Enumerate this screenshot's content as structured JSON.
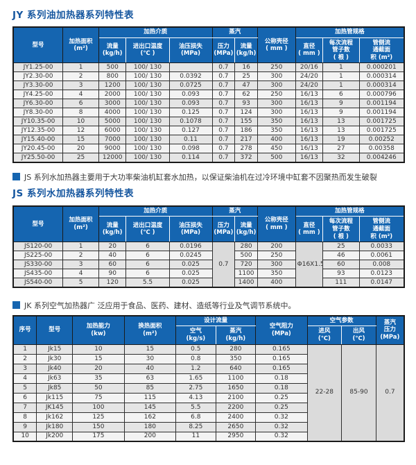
{
  "colors": {
    "header_blue": "#1565b0",
    "title_blue": "#15569f",
    "merged_cell_gray": "#dbdbdb"
  },
  "sections": {
    "jy": {
      "title": "JY 系列油加热器系列特性表",
      "table": {
        "columns": [
          {
            "label": "型号"
          },
          {
            "label": "加热面积\n(m²)"
          },
          {
            "group": "加热介质",
            "children": [
              "流量\n(kg/h)",
              "进出口温度\n(℃ )",
              "油压损失\n(MPa)"
            ]
          },
          {
            "group": "蒸汽",
            "children": [
              "压力\n(MPa)",
              "流量\n(kg/h)"
            ]
          },
          {
            "label": "公称壳径\n( mm )"
          },
          {
            "group": "加热管规格",
            "children": [
              "直径\n( mm )",
              "每次流程\n管子数\n( 根 )",
              "管侧流\n通截面\n积 (m²)"
            ]
          }
        ],
        "rows": [
          [
            "JY1.25-00",
            "1",
            "500",
            "100/ 130",
            "",
            "0.7",
            "16",
            "250",
            "20/16",
            "1",
            "0.000201"
          ],
          [
            "JY2.30-00",
            "2",
            "800",
            "100/ 130",
            "0.0392",
            "0.7",
            "25",
            "300",
            "24/20",
            "1",
            "0.000314"
          ],
          [
            "JY3.30-00",
            "3",
            "1200",
            "100/ 130",
            "0.0725",
            "0.7",
            "47",
            "300",
            "24/20",
            "1",
            "0.000314"
          ],
          [
            "JY4.25-00",
            "4",
            "2000",
            "100/ 130",
            "0.093",
            "0.7",
            "62",
            "250",
            "16/13",
            "6",
            "0.000796"
          ],
          [
            "JY6.30-00",
            "6",
            "3000",
            "100/ 130",
            "0.093",
            "0.7",
            "93",
            "300",
            "16/13",
            "9",
            "0.001194"
          ],
          [
            "JY8.30-00",
            "8",
            "4000",
            "100/ 130",
            "0.125",
            "0.7",
            "124",
            "300",
            "16/13",
            "9",
            "0.001194"
          ],
          [
            "JY10.35-00",
            "10",
            "5000",
            "100/ 130",
            "0.1078",
            "0.7",
            "155",
            "350",
            "16/13",
            "13",
            "0.001725"
          ],
          [
            "JY12.35-00",
            "12",
            "6000",
            "100/ 130",
            "0.127",
            "0.7",
            "186",
            "350",
            "16/13",
            "13",
            "0.001725"
          ],
          [
            "JY15.40-00",
            "15",
            "7000",
            "100/ 130",
            "0.11",
            "0.7",
            "217",
            "400",
            "16/13",
            "19",
            "0.00252"
          ],
          [
            "JY20.45-00",
            "20",
            "9000",
            "100/ 130",
            "0.098",
            "0.7",
            "278",
            "450",
            "16/13",
            "27",
            "0.00358"
          ],
          [
            "JY25.50-00",
            "25",
            "12000",
            "100/ 130",
            "0.114",
            "0.7",
            "372",
            "500",
            "16/13",
            "32",
            "0.004246"
          ]
        ]
      }
    },
    "js": {
      "note": "JS 系列水加热器主要用于大功率柴油机缸套水加热，以保证柴油机在过冷环境中缸套不因聚热而发生破裂",
      "title": "JS 系列水加热器系列特性表",
      "table": {
        "columns": [
          {
            "label": "型号"
          },
          {
            "label": "加热面积\n(m²)"
          },
          {
            "group": "加热介质",
            "children": [
              "流量\n(kg/h)",
              "进出口温度\n(℃ )",
              "油压损失\n(MPa)"
            ]
          },
          {
            "group": "蒸汽",
            "children": [
              "压力\n(MPa)",
              "流量\n(kg/h)"
            ]
          },
          {
            "label": "公称壳径\n( mm )"
          },
          {
            "group": "加热管规格",
            "children": [
              "直径\n( mm )",
              "每次流程\n管子数\n( 根 )",
              "管侧流\n通截面\n积 (m²)"
            ]
          }
        ],
        "merged": {
          "5": "0.7",
          "8": "Φ16X1.5"
        },
        "rows": [
          [
            "JS120-00",
            "1",
            "20",
            "6",
            "0.0196",
            "280",
            "200",
            "25",
            "0.0033"
          ],
          [
            "JS225-00",
            "2",
            "40",
            "6",
            "0.0245",
            "500",
            "250",
            "46",
            "0.0061"
          ],
          [
            "JS330-00",
            "3",
            "60",
            "6",
            "0.025",
            "720",
            "300",
            "60",
            "0.008"
          ],
          [
            "JS435-00",
            "4",
            "90",
            "6",
            "0.025",
            "1100",
            "350",
            "93",
            "0.0123"
          ],
          [
            "JS540-00",
            "5",
            "120",
            "5.5",
            "0.025",
            "1400",
            "400",
            "111",
            "0.0147"
          ]
        ]
      }
    },
    "jk": {
      "note": "JK 系列空气加热器广 泛应用于食品、医药、建材、造纸等行业及气调节系统中。",
      "table": {
        "columns": [
          {
            "label": "序号"
          },
          {
            "label": "型号"
          },
          {
            "label": "加热能力\n(kw)"
          },
          {
            "label": "换热面积\n(m²)"
          },
          {
            "group": "设计流量",
            "children": [
              "空气\n(kg/s)",
              "蒸汽\n(kg/h)"
            ]
          },
          {
            "label": "空气阻力\n(MPa)"
          },
          {
            "group": "空气参数",
            "children": [
              "进风\n(℃)",
              "出风\n(℃)"
            ]
          },
          {
            "label": "蒸汽\n压力\n(MPa)"
          }
        ],
        "merged": {
          "7": "22-28",
          "8": "85-90",
          "9": "0.7"
        },
        "rows": [
          [
            "1",
            "Jk15",
            "10",
            "15",
            "0.5",
            "280",
            "0.165"
          ],
          [
            "2",
            "Jk30",
            "15",
            "30",
            "0.8",
            "350",
            "0.165"
          ],
          [
            "3",
            "Jk40",
            "20",
            "40",
            "1.2",
            "640",
            "0.165"
          ],
          [
            "4",
            "Jk63",
            "35",
            "63",
            "1.65",
            "1100",
            "0.18"
          ],
          [
            "5",
            "Jk85",
            "50",
            "85",
            "2.75",
            "1650",
            "0.18"
          ],
          [
            "6",
            "Jk115",
            "75",
            "115",
            "4.13",
            "2100",
            "0.25"
          ],
          [
            "7",
            "JK145",
            "100",
            "145",
            "5.5",
            "2200",
            "0.25"
          ],
          [
            "8",
            "Jk162",
            "125",
            "162",
            "6.8",
            "2400",
            "0.32"
          ],
          [
            "9",
            "Jk180",
            "150",
            "180",
            "8.25",
            "2650",
            "0.32"
          ],
          [
            "10",
            "Jk200",
            "175",
            "200",
            "11",
            "2950",
            "0.32"
          ]
        ]
      }
    }
  }
}
